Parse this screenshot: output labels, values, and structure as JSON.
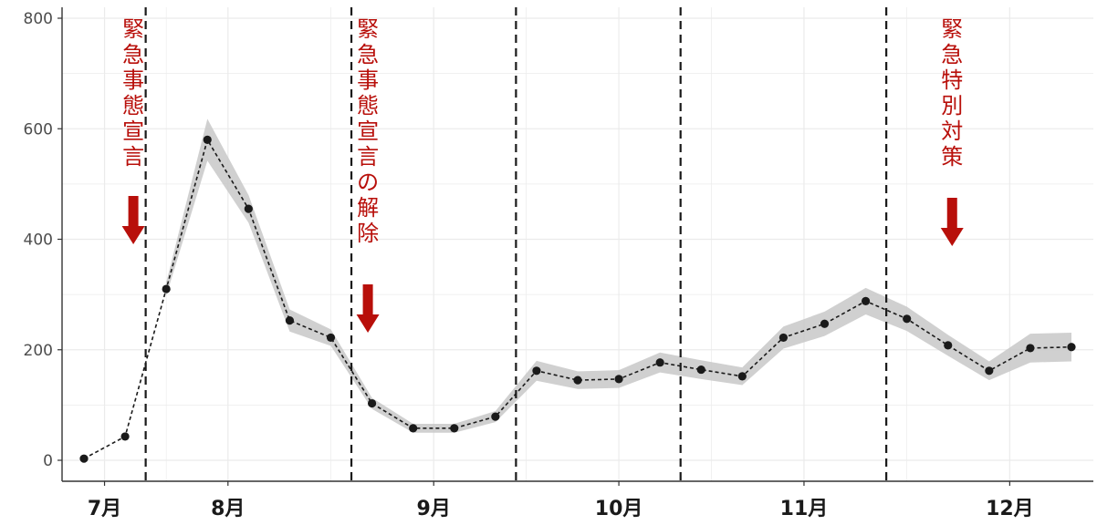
{
  "colors": {
    "annotation": "#b80f0a",
    "line": "#1a1a1a",
    "band": "#c8c8c8",
    "grid": "#ebebeb",
    "divider": "#1a1a1a"
  },
  "chart_data": {
    "type": "line",
    "title": "",
    "xlabel": "",
    "ylabel": "",
    "ylim": [
      0,
      800
    ],
    "yticks": [
      0,
      200,
      400,
      600,
      800
    ],
    "grid": true,
    "legend": "none",
    "x_index_range": [
      0,
      24
    ],
    "month_labels": [
      {
        "label": "7月",
        "at": 0.5
      },
      {
        "label": "8月",
        "at": 3.5
      },
      {
        "label": "9月",
        "at": 8.5
      },
      {
        "label": "10月",
        "at": 13
      },
      {
        "label": "11月",
        "at": 17.5
      },
      {
        "label": "12月",
        "at": 22.5
      }
    ],
    "points": [
      {
        "x": 0,
        "y": 3
      },
      {
        "x": 1,
        "y": 43
      },
      {
        "x": 2,
        "y": 310
      },
      {
        "x": 3,
        "y": 580
      },
      {
        "x": 4,
        "y": 455
      },
      {
        "x": 5,
        "y": 253
      },
      {
        "x": 6,
        "y": 222
      },
      {
        "x": 7,
        "y": 103
      },
      {
        "x": 8,
        "y": 58
      },
      {
        "x": 9,
        "y": 58
      },
      {
        "x": 10,
        "y": 79
      },
      {
        "x": 11,
        "y": 162
      },
      {
        "x": 12,
        "y": 145
      },
      {
        "x": 13,
        "y": 147
      },
      {
        "x": 14,
        "y": 177
      },
      {
        "x": 15,
        "y": 164
      },
      {
        "x": 16,
        "y": 152
      },
      {
        "x": 17,
        "y": 222
      },
      {
        "x": 18,
        "y": 247
      },
      {
        "x": 19,
        "y": 288
      },
      {
        "x": 20,
        "y": 256
      },
      {
        "x": 21,
        "y": 208
      },
      {
        "x": 22,
        "y": 162
      },
      {
        "x": 23,
        "y": 203
      },
      {
        "x": 24,
        "y": 205
      }
    ],
    "band_half_width": [
      0,
      0,
      12,
      38,
      25,
      20,
      15,
      10,
      8,
      8,
      10,
      18,
      16,
      16,
      18,
      17,
      16,
      20,
      22,
      24,
      22,
      19,
      17,
      26,
      26
    ],
    "band_start_index": 2,
    "vertical_dividers": [
      1.5,
      6.5,
      10.5,
      14.5,
      19.5
    ],
    "annotations": [
      {
        "lines": [
          "緊",
          "急",
          "事",
          "態",
          "宣",
          "言"
        ],
        "x": 1.2,
        "text_top": 20,
        "arrow_top": 215,
        "arrow_bottom": 268
      },
      {
        "lines": [
          "緊",
          "急",
          "事",
          "態",
          "宣",
          "言",
          "の",
          "解",
          "除"
        ],
        "x": 6.9,
        "text_top": 20,
        "arrow_top": 312,
        "arrow_bottom": 365
      },
      {
        "lines": [
          "緊",
          "急",
          "特",
          "別",
          "対",
          "策"
        ],
        "x": 21.1,
        "text_top": 20,
        "arrow_top": 217,
        "arrow_bottom": 270
      }
    ]
  }
}
